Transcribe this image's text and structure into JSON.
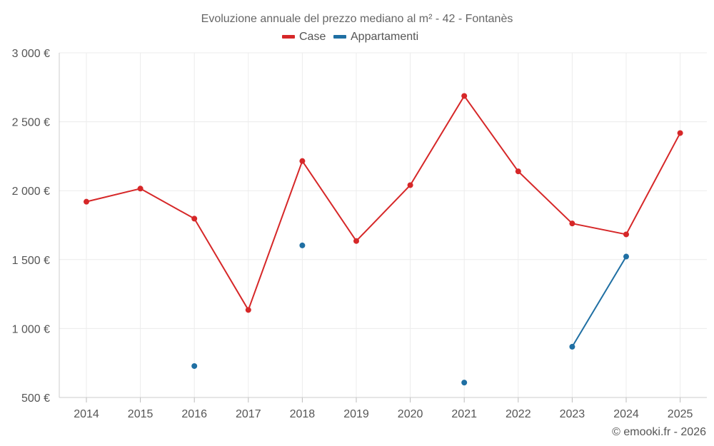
{
  "chart_data": {
    "type": "line",
    "title": "Evoluzione annuale del prezzo mediano al m² - 42 - Fontanès",
    "x": [
      2014,
      2015,
      2016,
      2017,
      2018,
      2019,
      2020,
      2021,
      2022,
      2023,
      2024,
      2025
    ],
    "series": [
      {
        "name": "Case",
        "color": "#d62728",
        "values": [
          1920,
          2015,
          1797,
          1135,
          2215,
          1635,
          2040,
          2687,
          2140,
          1762,
          1683,
          2418
        ]
      },
      {
        "name": "Appartamenti",
        "color": "#1f6fa3",
        "values": [
          null,
          null,
          728,
          null,
          1603,
          null,
          null,
          608,
          null,
          868,
          1522,
          null
        ]
      }
    ],
    "ylim": [
      500,
      3000
    ],
    "yticks": [
      500,
      1000,
      1500,
      2000,
      2500,
      3000
    ],
    "ytick_labels": [
      "500 €",
      "1 000 €",
      "1 500 €",
      "2 000 €",
      "2 500 €",
      "3 000 €"
    ],
    "legend_position": "top-center",
    "grid": true
  },
  "credit": "© emooki.fr - 2026"
}
